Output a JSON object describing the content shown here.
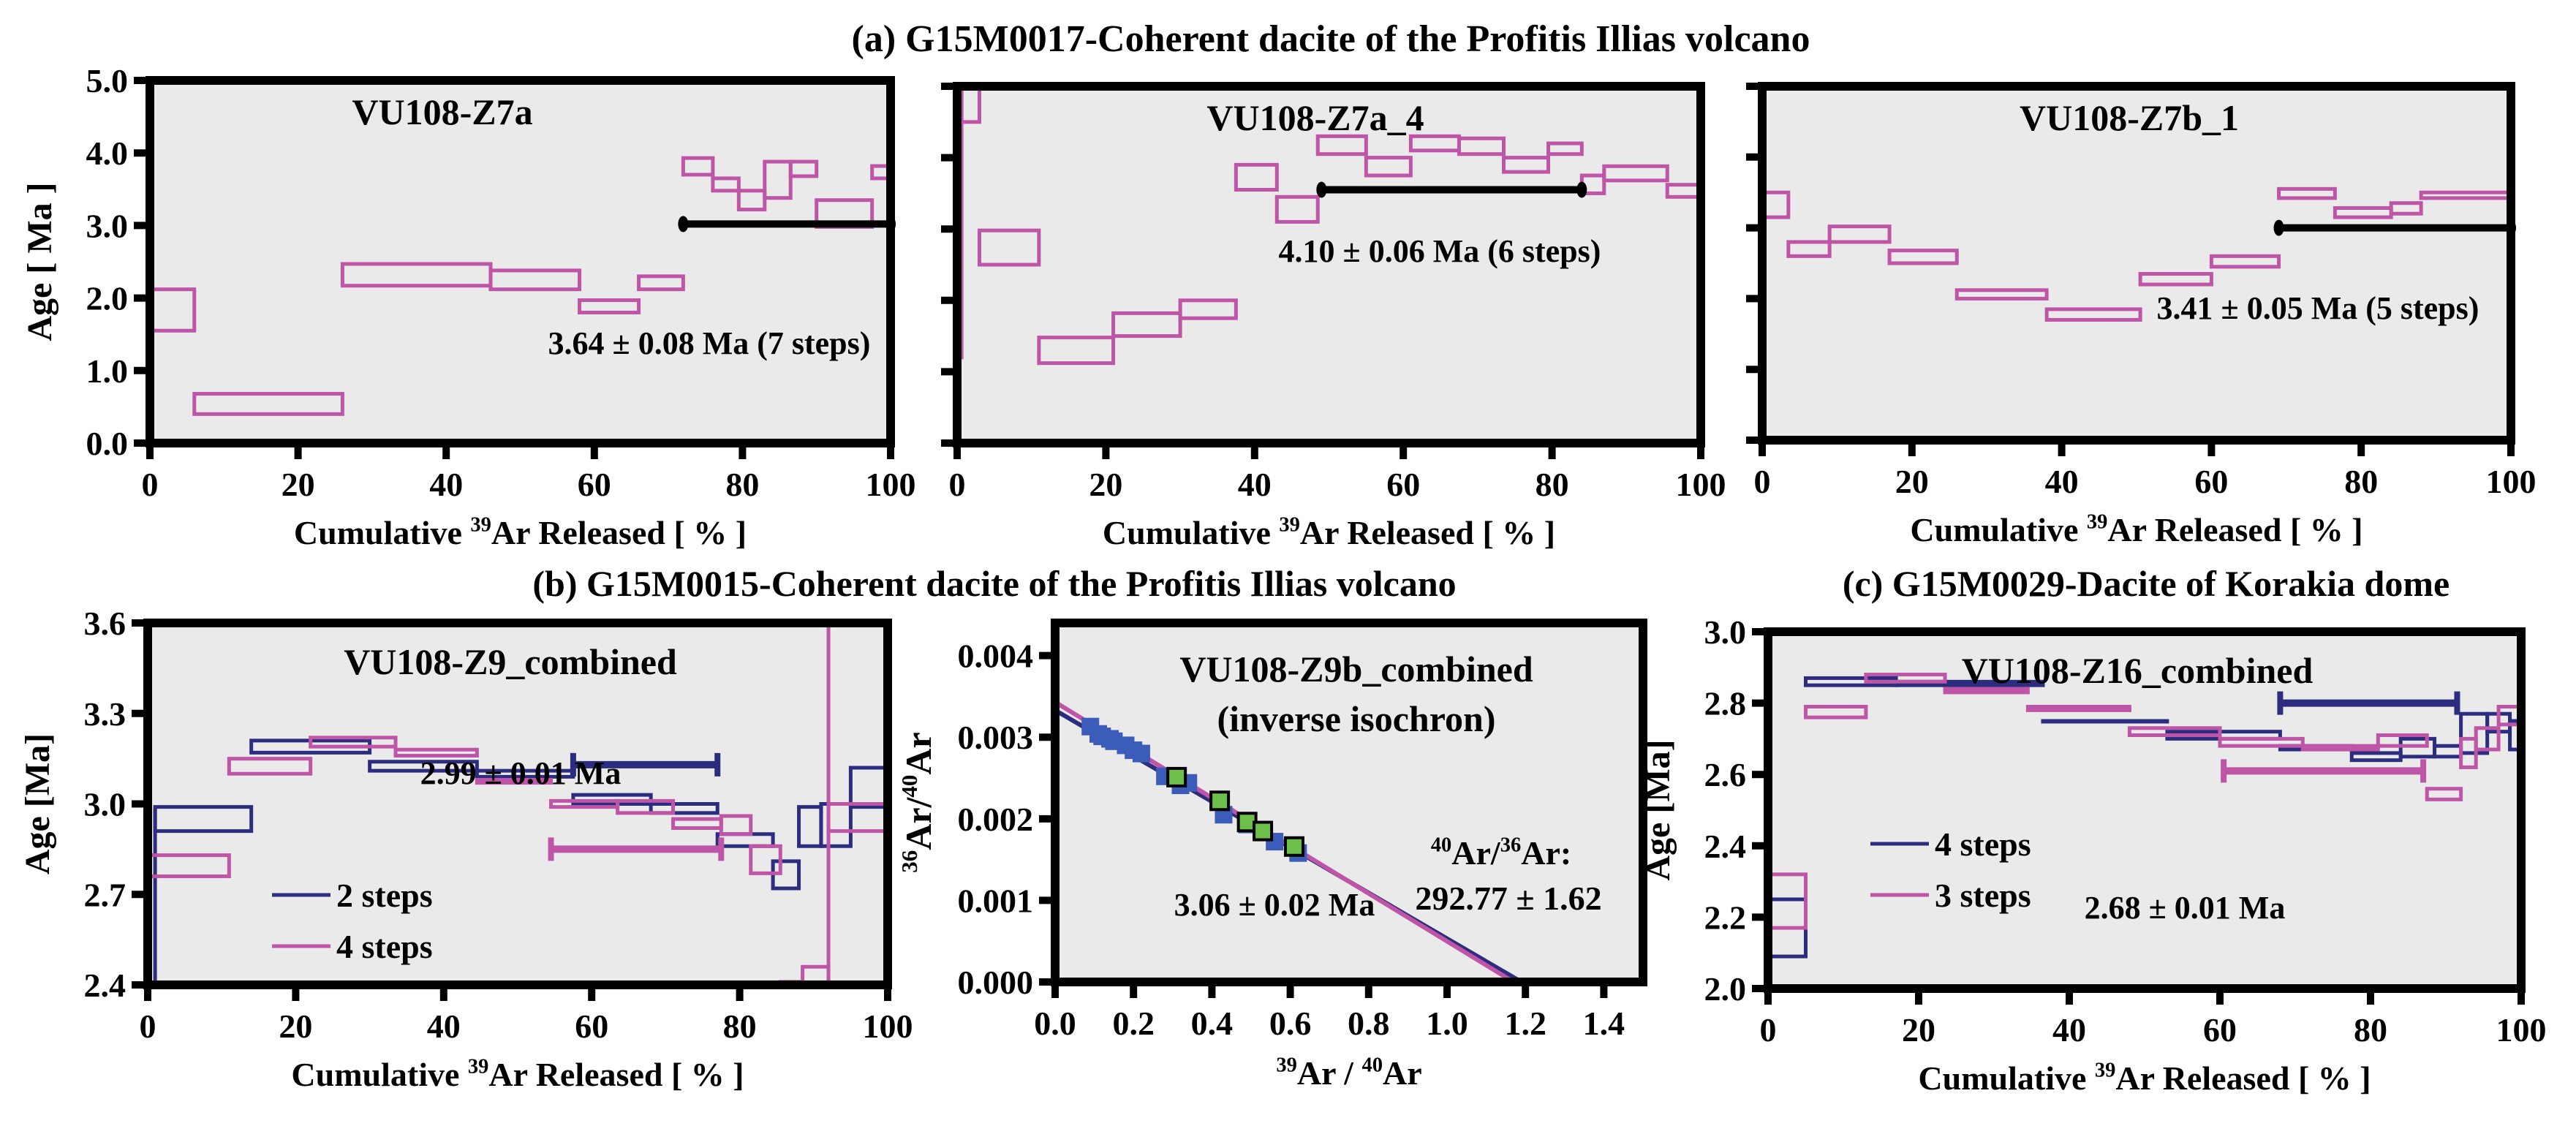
{
  "figure": {
    "colors": {
      "plot_bg": "#EAEAEA",
      "magenta": "#BE55A6",
      "navy": "#2C2D7E",
      "point_blue": "#3B5CB8",
      "point_green": "#6CBF48",
      "plateau_black": "#000000"
    }
  },
  "chart_data": [
    {
      "id": "a1",
      "type": "line",
      "subtype": "step-spectrum",
      "group_title": "(a) G15M0017-Coherent dacite of the Profitis Illias volcano",
      "title": "VU108-Z7a",
      "xlabel": "Cumulative 39Ar Released [ % ]",
      "xlabel_parts": {
        "pre": "Cumulative ",
        "sup": "39",
        "post": "Ar Released [ % ]"
      },
      "ylabel": "Age [ Ma ]",
      "xlim": [
        0,
        100
      ],
      "ylim": [
        0,
        5
      ],
      "xticks": [
        "0",
        "20",
        "40",
        "60",
        "80",
        "100"
      ],
      "yticks": [
        "0.0",
        "1.0",
        "2.0",
        "3.0",
        "4.0",
        "5.0"
      ],
      "grid": false,
      "annotation": "3.64 ± 0.08 Ma (7 steps)",
      "series": [
        {
          "name": "steps",
          "color": "magenta",
          "steps": [
            [
              0,
              6,
              1.55,
              2.12
            ],
            [
              6,
              26,
              0.4,
              0.68
            ],
            [
              26,
              46,
              2.17,
              2.47
            ],
            [
              46,
              58,
              2.12,
              2.38
            ],
            [
              58,
              66,
              1.8,
              1.97
            ],
            [
              66,
              72,
              2.12,
              2.3
            ],
            [
              72,
              76,
              3.7,
              3.93
            ],
            [
              76,
              79.5,
              3.48,
              3.65
            ],
            [
              79.5,
              83,
              3.22,
              3.48
            ],
            [
              83,
              86.5,
              3.38,
              3.88
            ],
            [
              86.5,
              90,
              3.68,
              3.88
            ],
            [
              90,
              97.5,
              2.98,
              3.35
            ],
            [
              97.5,
              100,
              3.65,
              3.82
            ]
          ]
        }
      ],
      "plateaus": [
        {
          "color": "plateau_black",
          "x": [
            72,
            100
          ],
          "y": 3.02,
          "caps": "dot"
        }
      ]
    },
    {
      "id": "a2",
      "type": "line",
      "subtype": "step-spectrum",
      "title": "VU108-Z7a_4",
      "xlabel": "Cumulative 39Ar Released [ % ]",
      "xlabel_parts": {
        "pre": "Cumulative ",
        "sup": "39",
        "post": "Ar Released [ % ]"
      },
      "ylabel": "",
      "xlim": [
        0,
        100
      ],
      "ylim": [
        0,
        5
      ],
      "xticks": [
        "0",
        "20",
        "40",
        "60",
        "80",
        "100"
      ],
      "yticks": [],
      "grid": false,
      "annotation": "4.10 ± 0.06 Ma (6 steps)",
      "series": [
        {
          "name": "steps",
          "color": "magenta",
          "steps": [
            [
              0,
              0.6,
              1.2,
              5.0
            ],
            [
              0.6,
              3,
              4.5,
              5.0
            ],
            [
              3,
              11,
              2.5,
              2.98
            ],
            [
              11,
              21,
              1.12,
              1.48
            ],
            [
              21,
              30,
              1.5,
              1.82
            ],
            [
              30,
              37.5,
              1.75,
              2.0
            ],
            [
              37.5,
              43,
              3.55,
              3.9
            ],
            [
              43,
              48.5,
              3.1,
              3.45
            ],
            [
              48.5,
              55,
              4.05,
              4.3
            ],
            [
              55,
              61,
              3.75,
              4.0
            ],
            [
              61,
              67.5,
              4.1,
              4.3
            ],
            [
              67.5,
              73.5,
              4.05,
              4.27
            ],
            [
              73.5,
              79.5,
              3.8,
              4.0
            ],
            [
              79.5,
              84,
              4.05,
              4.2
            ],
            [
              84,
              87,
              3.5,
              3.75
            ],
            [
              87,
              95.5,
              3.68,
              3.88
            ],
            [
              95.5,
              100,
              3.45,
              3.62
            ]
          ]
        }
      ],
      "plateaus": [
        {
          "color": "plateau_black",
          "x": [
            49,
            84
          ],
          "y": 3.55,
          "caps": "dot"
        }
      ]
    },
    {
      "id": "a3",
      "type": "line",
      "subtype": "step-spectrum",
      "title": "VU108-Z7b_1",
      "xlabel": "Cumulative 39Ar Released [ % ]",
      "xlabel_parts": {
        "pre": "Cumulative ",
        "sup": "39",
        "post": "Ar Released [ % ]"
      },
      "ylabel": "",
      "xlim": [
        0,
        100
      ],
      "ylim": [
        0,
        5
      ],
      "xticks": [
        "0",
        "20",
        "40",
        "60",
        "80",
        "100"
      ],
      "yticks": [],
      "grid": false,
      "annotation": "3.41 ± 0.05 Ma (5 steps)",
      "series": [
        {
          "name": "steps",
          "color": "magenta",
          "steps": [
            [
              0,
              3.5,
              3.15,
              3.5
            ],
            [
              3.5,
              9,
              2.6,
              2.8
            ],
            [
              9,
              17,
              2.8,
              3.02
            ],
            [
              17,
              26,
              2.5,
              2.68
            ],
            [
              26,
              38,
              2.0,
              2.12
            ],
            [
              38,
              50.5,
              1.7,
              1.85
            ],
            [
              50.5,
              60,
              2.2,
              2.35
            ],
            [
              60,
              69,
              2.45,
              2.6
            ],
            [
              69,
              76.5,
              3.42,
              3.55
            ],
            [
              76.5,
              84,
              3.15,
              3.28
            ],
            [
              84,
              88,
              3.2,
              3.35
            ],
            [
              88,
              100,
              3.42,
              3.5
            ]
          ]
        }
      ],
      "plateaus": [
        {
          "color": "plateau_black",
          "x": [
            69,
            100
          ],
          "y": 3.0,
          "caps": "dot"
        }
      ]
    },
    {
      "id": "b1",
      "type": "line",
      "subtype": "step-spectrum",
      "group_title": "(b) G15M0015-Coherent dacite of the Profitis Illias volcano",
      "title": "VU108-Z9_combined",
      "xlabel": "Cumulative 39Ar Released [ % ]",
      "xlabel_parts": {
        "pre": "Cumulative ",
        "sup": "39",
        "post": "Ar Released [ % ]"
      },
      "ylabel": "Age [Ma]",
      "xlim": [
        0,
        100
      ],
      "ylim": [
        2.4,
        3.6
      ],
      "xticks": [
        "0",
        "20",
        "40",
        "60",
        "80",
        "100"
      ],
      "yticks": [
        "2.4",
        "2.7",
        "3.0",
        "3.3",
        "3.6"
      ],
      "grid": false,
      "annotation": "2.99 ± 0.01 Ma",
      "legend": {
        "position": "bottom-left",
        "entries": [
          {
            "label": "2 steps",
            "color": "navy"
          },
          {
            "label": "4 steps",
            "color": "magenta"
          }
        ]
      },
      "series": [
        {
          "name": "2 steps",
          "color": "navy",
          "steps": [
            [
              1,
              14,
              2.91,
              2.99
            ],
            [
              14,
              30,
              3.17,
              3.21
            ],
            [
              30,
              44.5,
              3.11,
              3.14
            ],
            [
              44.5,
              57.5,
              3.09,
              3.11
            ],
            [
              57.5,
              68,
              3.0,
              3.03
            ],
            [
              68,
              77,
              2.97,
              3.0
            ],
            [
              77,
              84.5,
              2.86,
              2.9
            ],
            [
              84.5,
              88,
              2.72,
              2.81
            ],
            [
              88,
              91,
              2.86,
              2.99
            ],
            [
              91,
              95,
              2.86,
              3.0
            ],
            [
              95,
              100,
              2.99,
              3.12
            ]
          ],
          "extra_lines": [
            [
              1,
              2.4,
              1,
              2.99
            ]
          ]
        },
        {
          "name": "4 steps",
          "color": "magenta",
          "steps": [
            [
              0,
              11,
              2.76,
              2.83
            ],
            [
              11,
              22,
              3.1,
              3.15
            ],
            [
              22,
              33.5,
              3.19,
              3.22
            ],
            [
              33.5,
              44.5,
              3.16,
              3.18
            ],
            [
              44.5,
              54.5,
              3.07,
              3.08
            ],
            [
              54.5,
              63.5,
              2.99,
              3.01
            ],
            [
              63.5,
              71,
              2.97,
              3.01
            ],
            [
              71,
              77.5,
              2.92,
              2.95
            ],
            [
              77.5,
              81.5,
              2.9,
              2.96
            ],
            [
              81.5,
              85.5,
              2.77,
              2.86
            ],
            [
              85.5,
              88.5,
              2.4,
              2.41
            ],
            [
              88.5,
              92,
              2.4,
              2.46
            ],
            [
              92,
              100,
              2.91,
              3.0
            ]
          ],
          "extra_lines": [
            [
              92,
              2.4,
              92,
              3.6
            ]
          ]
        }
      ],
      "plateaus": [
        {
          "color": "navy",
          "x": [
            57.5,
            77
          ],
          "y": 3.13,
          "caps": "bar"
        },
        {
          "color": "magenta",
          "x": [
            54.5,
            77.5
          ],
          "y": 2.85,
          "caps": "bar"
        }
      ]
    },
    {
      "id": "b2",
      "type": "scatter",
      "subtype": "inverse-isochron",
      "title": "VU108-Z9b_combined",
      "title2": "(inverse isochron)",
      "xlabel": "39Ar / 40Ar",
      "ylabel": "36Ar/40Ar",
      "xlim": [
        0,
        1.5
      ],
      "ylim": [
        0,
        0.0044
      ],
      "xticks": [
        "0.0",
        "0.2",
        "0.4",
        "0.6",
        "0.8",
        "1.0",
        "1.2",
        "1.4"
      ],
      "yticks": [
        "0.000",
        "0.001",
        "0.002",
        "0.003",
        "0.004"
      ],
      "grid": false,
      "annotation_age": "3.06 ± 0.02 Ma",
      "annotation_ratio_label": "40Ar/36Ar:",
      "annotation_ratio_value": "292.77 ± 1.62",
      "lines": [
        {
          "color": "navy",
          "x": [
            0,
            1.19
          ],
          "y": [
            0.00333,
            0
          ]
        },
        {
          "color": "magenta",
          "x": [
            0,
            1.17
          ],
          "y": [
            0.00343,
            0
          ]
        }
      ],
      "series": [
        {
          "name": "blue",
          "color": "point_blue",
          "points": [
            [
              0.09,
              0.00313
            ],
            [
              0.11,
              0.00304
            ],
            [
              0.12,
              0.00301
            ],
            [
              0.14,
              0.00298
            ],
            [
              0.15,
              0.00295
            ],
            [
              0.18,
              0.0029
            ],
            [
              0.2,
              0.00284
            ],
            [
              0.22,
              0.0028
            ],
            [
              0.28,
              0.00252
            ],
            [
              0.32,
              0.00241
            ],
            [
              0.34,
              0.00244
            ],
            [
              0.43,
              0.00205
            ],
            [
              0.49,
              0.00193
            ],
            [
              0.56,
              0.00172
            ],
            [
              0.62,
              0.00158
            ]
          ]
        },
        {
          "name": "green",
          "color": "point_green",
          "points": [
            [
              0.31,
              0.00251
            ],
            [
              0.42,
              0.00222
            ],
            [
              0.49,
              0.00196
            ],
            [
              0.53,
              0.00185
            ],
            [
              0.61,
              0.00166
            ]
          ]
        }
      ]
    },
    {
      "id": "c",
      "type": "line",
      "subtype": "step-spectrum",
      "group_title": "(c) G15M0029-Dacite of Korakia dome",
      "title": "VU108-Z16_combined",
      "xlabel": "Cumulative 39Ar Released [ % ]",
      "xlabel_parts": {
        "pre": "Cumulative ",
        "sup": "39",
        "post": "Ar Released [ % ]"
      },
      "ylabel": "Age [Ma]",
      "xlim": [
        0,
        100
      ],
      "ylim": [
        2.0,
        3.0
      ],
      "xticks": [
        "0",
        "20",
        "40",
        "60",
        "80",
        "100"
      ],
      "yticks": [
        "2.0",
        "2.2",
        "2.4",
        "2.6",
        "2.8",
        "3.0"
      ],
      "grid": false,
      "annotation": "2.68 ± 0.01 Ma",
      "legend": {
        "position": "bottom-left",
        "entries": [
          {
            "label": "4 steps",
            "color": "navy"
          },
          {
            "label": "3 steps",
            "color": "magenta"
          }
        ]
      },
      "series": [
        {
          "name": "4 steps",
          "color": "navy",
          "steps": [
            [
              0,
              5,
              2.09,
              2.25
            ],
            [
              5,
              17,
              2.85,
              2.87
            ],
            [
              17,
              36.5,
              2.85,
              2.86
            ],
            [
              36.5,
              53,
              2.75,
              2.75
            ],
            [
              53,
              68,
              2.7,
              2.72
            ],
            [
              68,
              77.5,
              2.67,
              2.68
            ],
            [
              77.5,
              84,
              2.64,
              2.66
            ],
            [
              84,
              88.5,
              2.65,
              2.7
            ],
            [
              88.5,
              92,
              2.65,
              2.68
            ],
            [
              92,
              95.5,
              2.66,
              2.77
            ],
            [
              95.5,
              98.5,
              2.72,
              2.77
            ],
            [
              98.5,
              100,
              2.67,
              2.75
            ]
          ]
        },
        {
          "name": "3 steps",
          "color": "magenta",
          "steps": [
            [
              0,
              5,
              2.17,
              2.32
            ],
            [
              5,
              13,
              2.76,
              2.79
            ],
            [
              13,
              23.5,
              2.86,
              2.88
            ],
            [
              23.5,
              34.5,
              2.83,
              2.84
            ],
            [
              34.5,
              48,
              2.78,
              2.79
            ],
            [
              48,
              60,
              2.71,
              2.73
            ],
            [
              60,
              71,
              2.68,
              2.7
            ],
            [
              71,
              81,
              2.67,
              2.68
            ],
            [
              81,
              87.5,
              2.68,
              2.71
            ],
            [
              87.5,
              92,
              2.53,
              2.56
            ],
            [
              92,
              94,
              2.62,
              2.7
            ],
            [
              94,
              97,
              2.67,
              2.73
            ],
            [
              97,
              100,
              2.74,
              2.79
            ]
          ]
        }
      ],
      "plateaus": [
        {
          "color": "navy",
          "x": [
            68,
            91.5
          ],
          "y": 2.8,
          "caps": "bar"
        },
        {
          "color": "magenta",
          "x": [
            60.5,
            87
          ],
          "y": 2.61,
          "caps": "bar"
        }
      ]
    }
  ]
}
